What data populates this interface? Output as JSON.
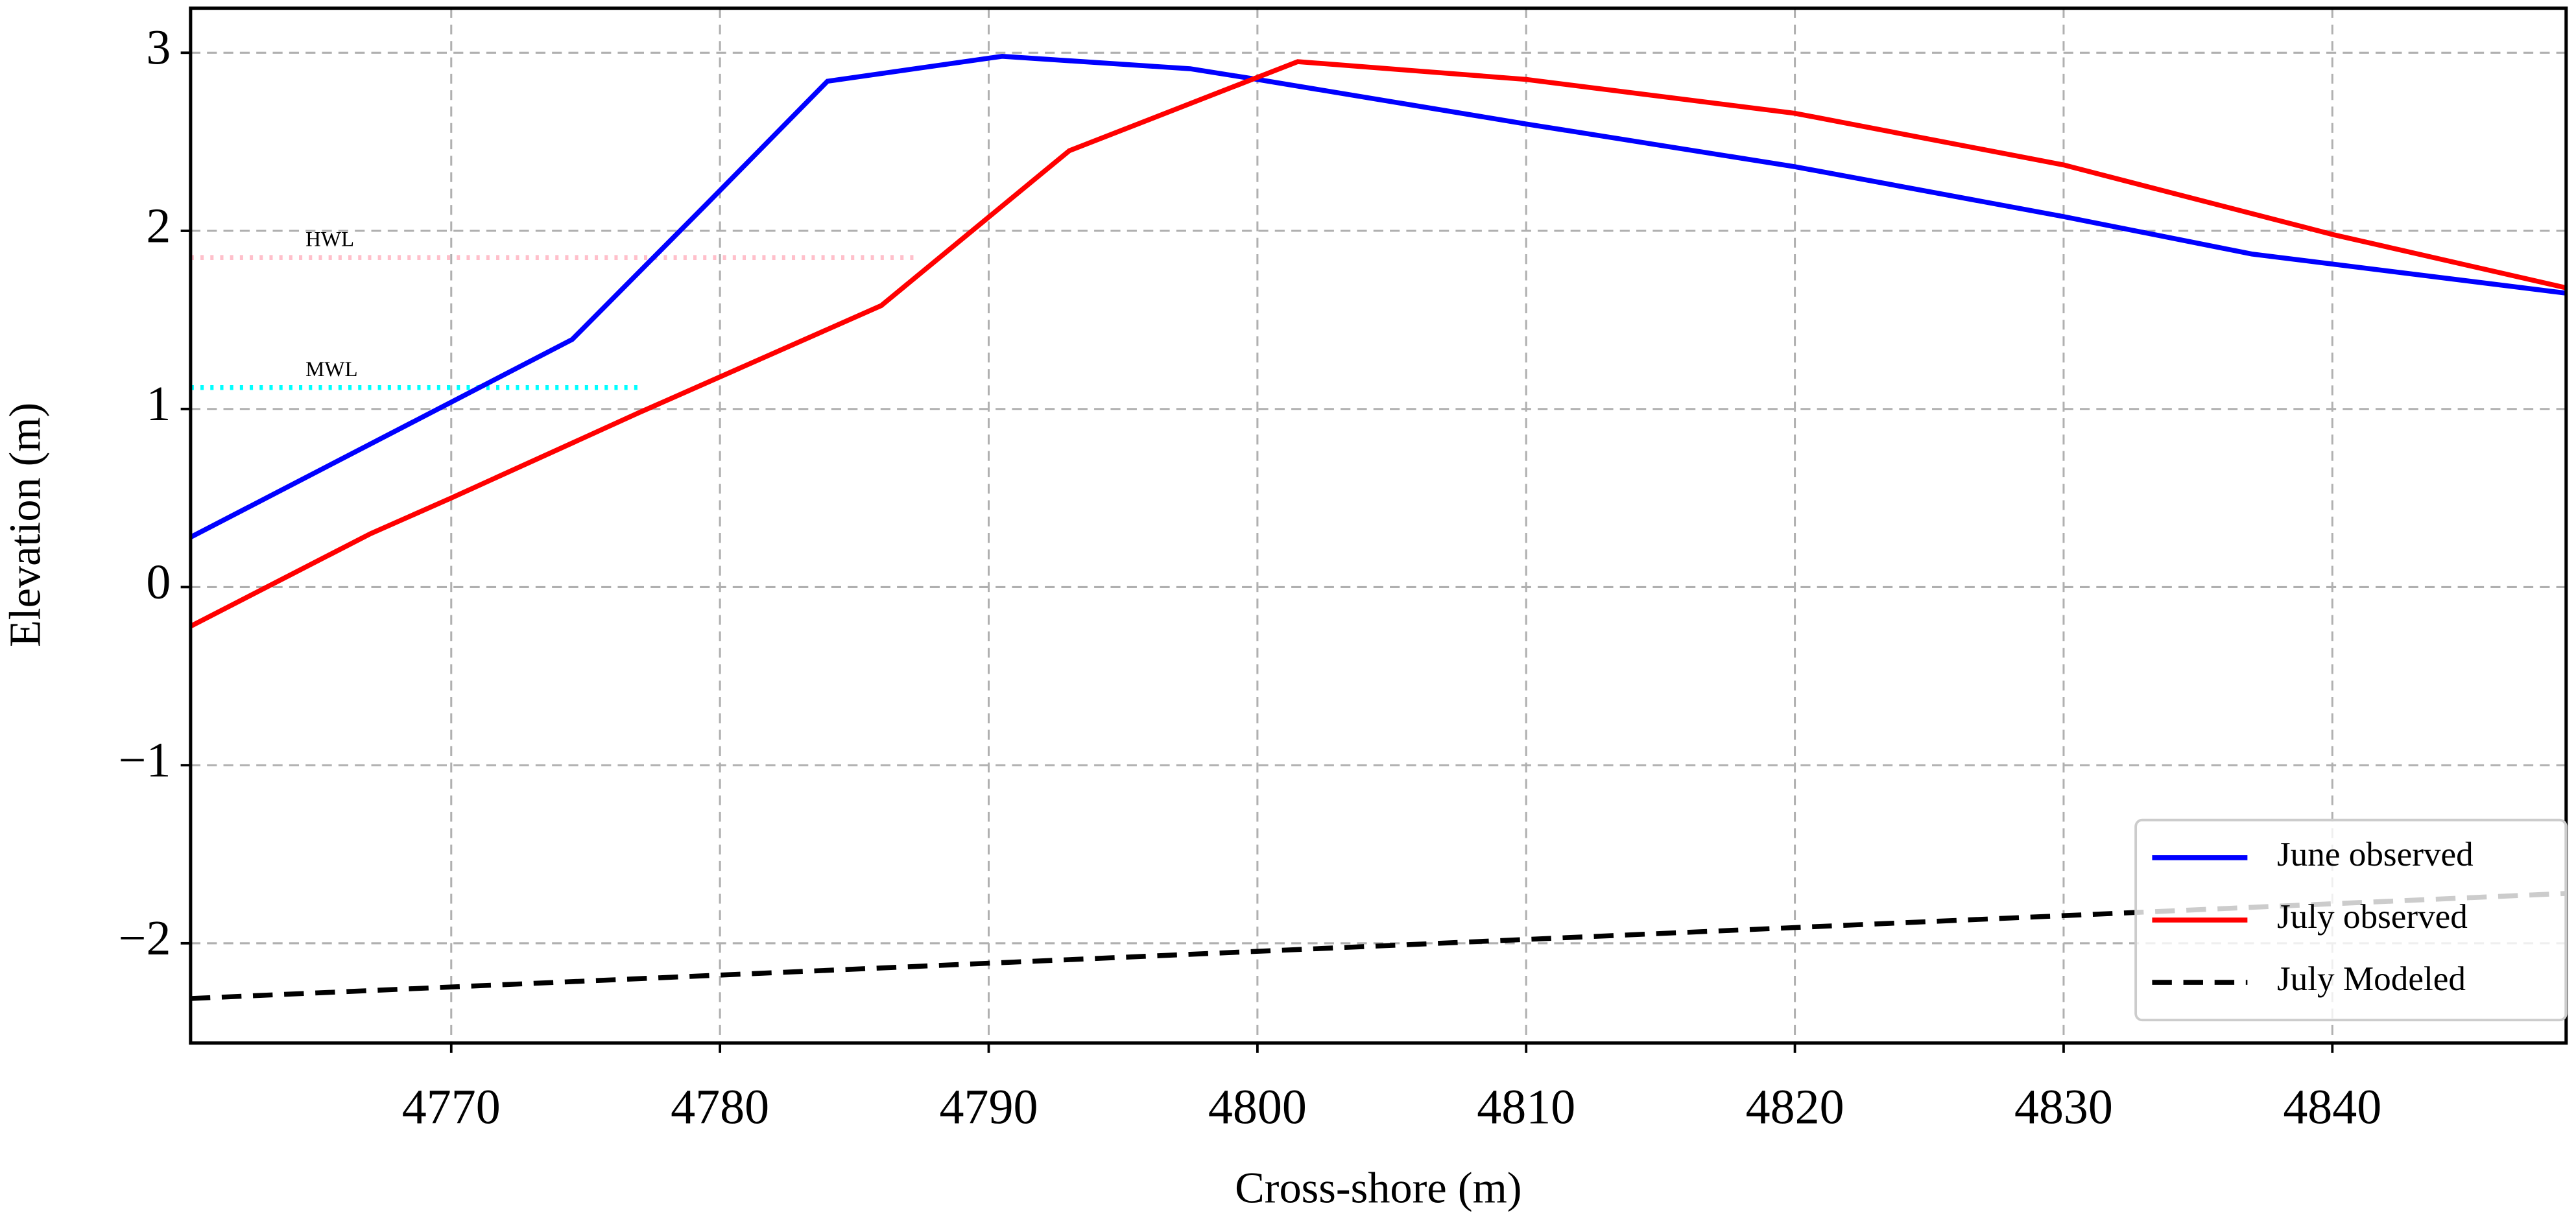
{
  "chart_data": {
    "type": "line",
    "xlabel": "Cross-shore (m)",
    "ylabel": "Elevation (m)",
    "xlim": [
      4760.3,
      4848.7
    ],
    "ylim": [
      -2.56,
      3.25
    ],
    "xticks": [
      4770,
      4780,
      4790,
      4800,
      4810,
      4820,
      4830,
      4840
    ],
    "yticks": [
      {
        "value": -2,
        "label": "−2"
      },
      {
        "value": -1,
        "label": "−1"
      },
      0,
      1,
      2,
      3
    ],
    "grid": true,
    "legend": "lower right",
    "series": [
      {
        "name": "June observed",
        "color": "#0000ff",
        "dash": false,
        "x": [
          4760.3,
          4774.5,
          4779.5,
          4784,
          4790.5,
          4797.5,
          4800,
          4810,
          4820,
          4830,
          4837,
          4848.7
        ],
        "values": [
          0.28,
          1.39,
          2.15,
          2.84,
          2.98,
          2.91,
          2.85,
          2.6,
          2.36,
          2.08,
          1.87,
          1.65
        ]
      },
      {
        "name": "July observed",
        "color": "#ff0000",
        "dash": false,
        "x": [
          4760.3,
          4767,
          4770,
          4777,
          4786,
          4793,
          4801.5,
          4810,
          4820,
          4830,
          4840,
          4848.7
        ],
        "values": [
          -0.22,
          0.3,
          0.5,
          0.98,
          1.58,
          2.45,
          2.95,
          2.85,
          2.66,
          2.37,
          1.98,
          1.68
        ]
      },
      {
        "name": "July Modeled",
        "color": "#000000",
        "dash": true,
        "x": [
          4760.3,
          4848.7
        ],
        "values": [
          -2.31,
          -1.72
        ]
      }
    ],
    "reference_lines": [
      {
        "label": "HWL",
        "y": 1.85,
        "x": [
          4760.3,
          4787.4
        ],
        "color": "#ffc0cb"
      },
      {
        "label": "MWL",
        "y": 1.12,
        "x": [
          4760.3,
          4777.1
        ],
        "color": "#00ffff"
      }
    ]
  }
}
